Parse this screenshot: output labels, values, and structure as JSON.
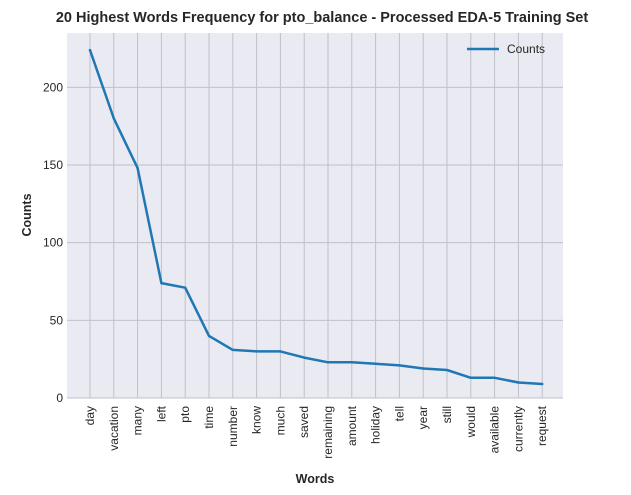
{
  "chart_data": {
    "type": "line",
    "title": "20 Highest Words Frequency for pto_balance - Processed EDA-5 Training Set",
    "xlabel": "Words",
    "ylabel": "Counts",
    "categories": [
      "day",
      "vacation",
      "many",
      "left",
      "pto",
      "time",
      "number",
      "know",
      "much",
      "saved",
      "remaining",
      "amount",
      "holiday",
      "tell",
      "year",
      "still",
      "would",
      "available",
      "currently",
      "request"
    ],
    "series": [
      {
        "name": "Counts",
        "color": "#1f77b4",
        "values": [
          224,
          180,
          148,
          74,
          71,
          40,
          31,
          30,
          30,
          26,
          23,
          23,
          22,
          21,
          19,
          18,
          13,
          13,
          10,
          9
        ]
      }
    ],
    "yticks": [
      0,
      50,
      100,
      150,
      200
    ],
    "ylim": [
      0,
      235
    ],
    "grid": true,
    "legend_position": "top-right",
    "background": "#eaeaf2"
  }
}
